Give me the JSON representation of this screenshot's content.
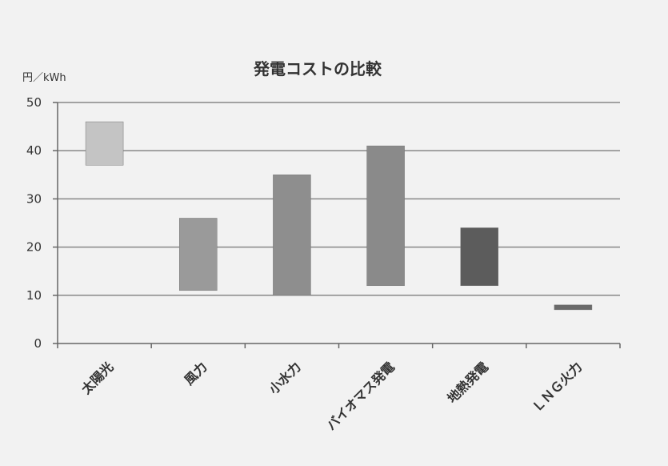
{
  "chart_data": {
    "type": "bar",
    "title": "発電コストの比較",
    "ylabel": "円／kWh",
    "xlabel": "",
    "ylim": [
      0,
      50
    ],
    "yticks": [
      0,
      10,
      20,
      30,
      40,
      50
    ],
    "grid": true,
    "categories": [
      "太陽光",
      "風力",
      "小水力",
      "バイオマス発電",
      "地熱発電",
      "ＬＮＧ火力"
    ],
    "ranges": [
      {
        "low": 37,
        "high": 46,
        "color": "#c4c4c4"
      },
      {
        "low": 11,
        "high": 26,
        "color": "#9a9a9a"
      },
      {
        "low": 10,
        "high": 35,
        "color": "#8e8e8e"
      },
      {
        "low": 12,
        "high": 41,
        "color": "#8a8a8a"
      },
      {
        "low": 12,
        "high": 24,
        "color": "#5c5c5c"
      },
      {
        "low": 7,
        "high": 8,
        "color": "#6a6a6a"
      }
    ]
  }
}
